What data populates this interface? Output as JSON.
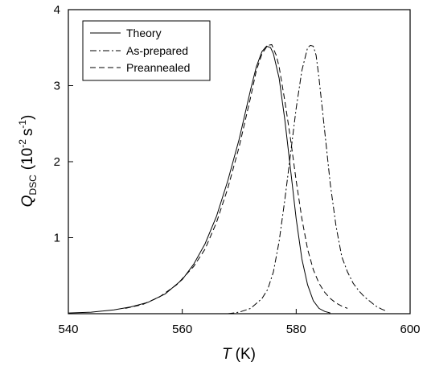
{
  "chart_data": {
    "type": "line",
    "title": "",
    "xlabel": {
      "italic": "T",
      "rest": "(K)"
    },
    "ylabel": {
      "q": "Q",
      "sub": "DSC",
      "open": "(10",
      "exp1": "-2",
      "mid": "s",
      "exp2": "-1",
      "close": ")"
    },
    "xlim": [
      540,
      600
    ],
    "ylim": [
      0,
      4
    ],
    "x_ticks": [
      540,
      560,
      580,
      600
    ],
    "y_ticks": [
      1,
      2,
      3,
      4
    ],
    "grid": false,
    "legend_position": "top-left",
    "series": [
      {
        "name": "Theory",
        "dash": "solid",
        "x": [
          540,
          544,
          548,
          551,
          554,
          557,
          560,
          562,
          564,
          566,
          568,
          570,
          572,
          573,
          574,
          574.8,
          575.5,
          576,
          577,
          578,
          579,
          580,
          581,
          582,
          583,
          584,
          585,
          586
        ],
        "y": [
          0.01,
          0.02,
          0.05,
          0.09,
          0.15,
          0.26,
          0.45,
          0.65,
          0.92,
          1.28,
          1.75,
          2.3,
          2.95,
          3.25,
          3.45,
          3.52,
          3.5,
          3.42,
          3.1,
          2.55,
          1.9,
          1.25,
          0.72,
          0.38,
          0.17,
          0.07,
          0.03,
          0.01
        ]
      },
      {
        "name": "As-prepared",
        "dash": "dash-dot",
        "x": [
          568,
          570,
          572,
          574,
          575,
          576,
          577,
          578,
          579,
          580,
          581,
          582,
          582.5,
          583,
          583.5,
          584,
          585,
          586,
          587,
          588,
          589,
          590,
          591,
          592,
          593,
          594,
          595,
          596
        ],
        "y": [
          0,
          0.02,
          0.07,
          0.2,
          0.32,
          0.55,
          0.95,
          1.5,
          2.1,
          2.7,
          3.2,
          3.5,
          3.53,
          3.52,
          3.4,
          3.1,
          2.4,
          1.7,
          1.15,
          0.75,
          0.55,
          0.4,
          0.3,
          0.22,
          0.16,
          0.1,
          0.06,
          0.03
        ]
      },
      {
        "name": "Preannealed",
        "dash": "dashed",
        "x": [
          550,
          553,
          556,
          559,
          562,
          564,
          566,
          568,
          570,
          572,
          573,
          574,
          575,
          575.7,
          576.5,
          577,
          578,
          579,
          580,
          581,
          582,
          583,
          584,
          585,
          586,
          587,
          588,
          589
        ],
        "y": [
          0.07,
          0.12,
          0.22,
          0.38,
          0.62,
          0.85,
          1.2,
          1.65,
          2.2,
          2.85,
          3.2,
          3.42,
          3.53,
          3.54,
          3.4,
          3.25,
          2.8,
          2.3,
          1.75,
          1.25,
          0.85,
          0.58,
          0.4,
          0.28,
          0.2,
          0.14,
          0.1,
          0.07
        ]
      }
    ]
  }
}
